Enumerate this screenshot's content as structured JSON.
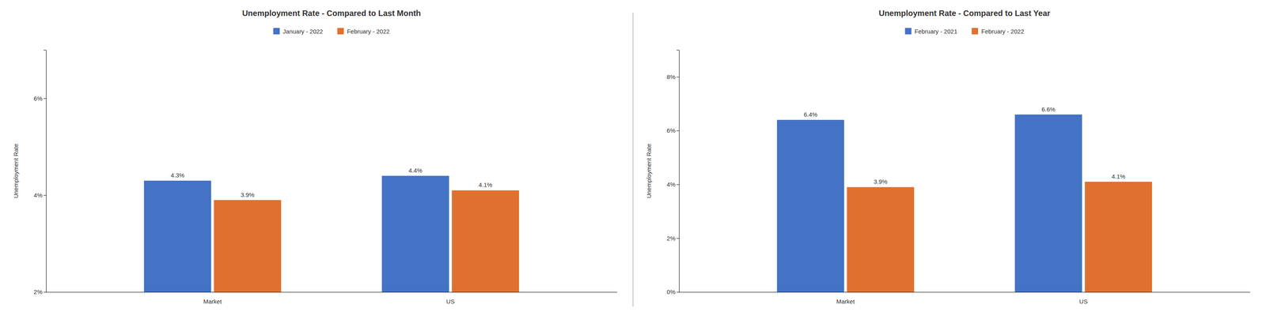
{
  "chart_data": [
    {
      "type": "bar",
      "title": "Unemployment Rate - Compared to Last Month",
      "ylabel": "Unemployment Rate",
      "categories": [
        "Market",
        "US"
      ],
      "series": [
        {
          "name": "January - 2022",
          "color": "#4472C4",
          "values": [
            4.3,
            4.4
          ],
          "value_labels": [
            "4.3%",
            "4.4%"
          ]
        },
        {
          "name": "February - 2022",
          "color": "#E07030",
          "values": [
            3.9,
            4.1
          ],
          "value_labels": [
            "3.9%",
            "4.1%"
          ]
        }
      ],
      "ylim": [
        2,
        7
      ],
      "yticks": [
        {
          "value": 2,
          "label": "2%"
        },
        {
          "value": 4,
          "label": "4%"
        },
        {
          "value": 6,
          "label": "6%"
        }
      ],
      "data_labels": true,
      "legend": "top",
      "grid": false
    },
    {
      "type": "bar",
      "title": "Unemployment Rate - Compared to Last Year",
      "ylabel": "Unemployment Rate",
      "categories": [
        "Market",
        "US"
      ],
      "series": [
        {
          "name": "February - 2021",
          "color": "#4472C4",
          "values": [
            6.4,
            6.6
          ],
          "value_labels": [
            "6.4%",
            "6.6%"
          ]
        },
        {
          "name": "February - 2022",
          "color": "#E07030",
          "values": [
            3.9,
            4.1
          ],
          "value_labels": [
            "3.9%",
            "4.1%"
          ]
        }
      ],
      "ylim": [
        0,
        9
      ],
      "yticks": [
        {
          "value": 0,
          "label": "0%"
        },
        {
          "value": 2,
          "label": "2%"
        },
        {
          "value": 4,
          "label": "4%"
        },
        {
          "value": 6,
          "label": "6%"
        },
        {
          "value": 8,
          "label": "8%"
        }
      ],
      "data_labels": true,
      "legend": "top",
      "grid": false
    }
  ]
}
